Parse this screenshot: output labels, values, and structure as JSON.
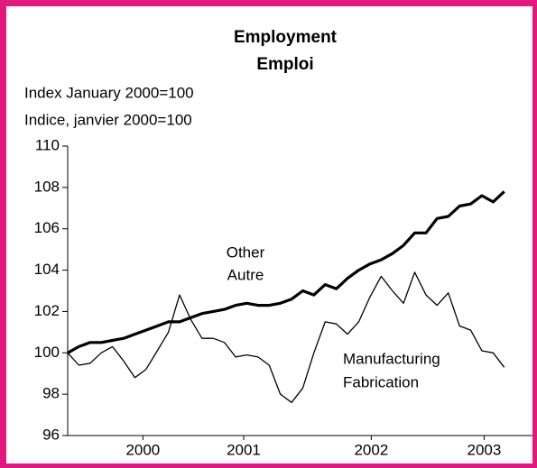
{
  "chart_data": {
    "type": "line",
    "title": "Employment",
    "subtitle": "Emploi",
    "ylabel": "Index January 2000=100",
    "ylabel_fr": "Indice, janvier 2000=100",
    "x": [
      2000,
      2000.083,
      2000.167,
      2000.25,
      2000.333,
      2000.417,
      2000.5,
      2000.583,
      2000.667,
      2000.75,
      2000.833,
      2000.917,
      2001,
      2001.083,
      2001.167,
      2001.25,
      2001.333,
      2001.417,
      2001.5,
      2001.583,
      2001.667,
      2001.75,
      2001.833,
      2001.917,
      2002,
      2002.083,
      2002.167,
      2002.25,
      2002.333,
      2002.417,
      2002.5,
      2002.583,
      2002.667,
      2002.75,
      2002.833,
      2002.917,
      2003,
      2003.083,
      2003.167,
      2003.25
    ],
    "series": [
      {
        "name": "Other",
        "name_fr": "Autre",
        "color": "#000000",
        "line_width": 3.2,
        "values": [
          100,
          100.3,
          100.5,
          100.5,
          100.6,
          100.7,
          100.9,
          101.1,
          101.3,
          101.5,
          101.5,
          101.7,
          101.9,
          102,
          102.1,
          102.3,
          102.4,
          102.3,
          102.3,
          102.4,
          102.6,
          103,
          102.8,
          103.3,
          103.1,
          103.6,
          104,
          104.3,
          104.5,
          104.8,
          105.2,
          105.8,
          105.8,
          106.5,
          106.6,
          107.1,
          107.2,
          107.6,
          107.3,
          107.8
        ]
      },
      {
        "name": "Manufacturing",
        "name_fr": "Fabrication",
        "color": "#000000",
        "line_width": 1.3,
        "values": [
          100,
          99.4,
          99.5,
          100,
          100.3,
          99.6,
          98.8,
          99.2,
          100.1,
          101,
          102.8,
          101.6,
          100.7,
          100.7,
          100.5,
          99.8,
          99.9,
          99.8,
          99.4,
          98,
          97.6,
          98.3,
          100,
          101.5,
          101.4,
          100.9,
          101.5,
          102.7,
          103.7,
          103,
          102.4,
          103.9,
          102.8,
          102.3,
          102.9,
          101.3,
          101.1,
          100.1,
          100,
          99.3
        ]
      }
    ],
    "xlim": [
      2000,
      2003.46
    ],
    "xticks": [
      {
        "value": 2000.56,
        "label": "2000"
      },
      {
        "value": 2001.31,
        "label": "2001"
      },
      {
        "value": 2002.26,
        "label": "2002"
      },
      {
        "value": 2003.1,
        "label": "2003"
      }
    ],
    "ylim": [
      96,
      110
    ],
    "yticks": [
      96,
      98,
      100,
      102,
      104,
      106,
      108,
      110
    ],
    "grid": false
  }
}
